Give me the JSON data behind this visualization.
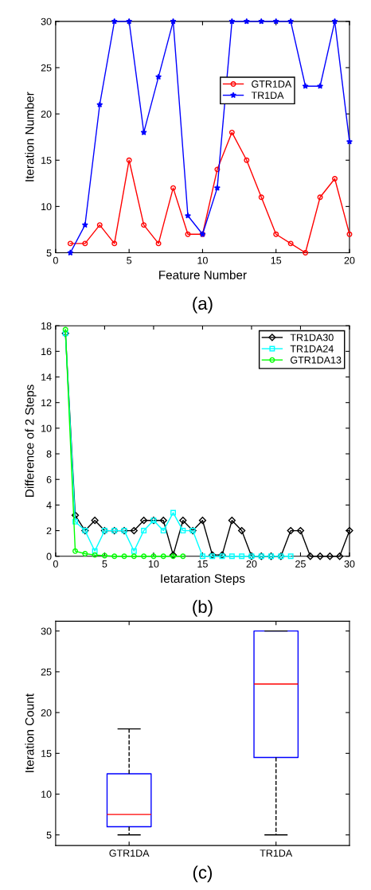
{
  "chart_data": [
    {
      "type": "line",
      "xlabel": "Feature Number",
      "ylabel": "Iteration Number",
      "annotations": [
        "(a)"
      ],
      "xlim": [
        0,
        20
      ],
      "xticks": [
        0,
        5,
        10,
        15,
        20
      ],
      "ylim": [
        5,
        30
      ],
      "yticks": [
        5,
        10,
        15,
        20,
        25,
        30
      ],
      "grid": false,
      "legend": "center right",
      "x": [
        1,
        2,
        3,
        4,
        5,
        6,
        7,
        8,
        9,
        10,
        11,
        12,
        13,
        14,
        15,
        16,
        17,
        18,
        19,
        20
      ],
      "series": [
        {
          "name": "GTR1DA",
          "color": "#ff0000",
          "marker": "circle",
          "values": [
            6,
            6,
            8,
            6,
            15,
            8,
            6,
            12,
            7,
            7,
            14,
            18,
            15,
            11,
            7,
            6,
            5,
            11,
            13,
            7
          ]
        },
        {
          "name": "TR1DA",
          "color": "#0000ff",
          "marker": "star",
          "values": [
            5,
            8,
            21,
            30,
            30,
            18,
            24,
            30,
            9,
            7,
            12,
            30,
            30,
            30,
            30,
            30,
            23,
            23,
            30,
            17
          ]
        }
      ]
    },
    {
      "type": "line",
      "xlabel": "Ietaration Steps",
      "ylabel": "Difference of 2 Steps",
      "annotations": [
        "(b)"
      ],
      "xlim": [
        0,
        30
      ],
      "xticks": [
        0,
        5,
        10,
        15,
        20,
        25,
        30
      ],
      "ylim": [
        0,
        18
      ],
      "yticks": [
        0,
        2,
        4,
        6,
        8,
        10,
        12,
        14,
        16,
        18
      ],
      "grid": false,
      "legend": "top right",
      "series": [
        {
          "name": "TR1DA30",
          "color": "#000000",
          "marker": "diamond",
          "x": [
            1,
            2,
            3,
            4,
            5,
            6,
            7,
            8,
            9,
            10,
            11,
            12,
            13,
            14,
            15,
            16,
            17,
            18,
            19,
            20,
            21,
            22,
            23,
            24,
            25,
            26,
            27,
            28,
            29,
            30
          ],
          "values": [
            17.4,
            3.2,
            2,
            2.8,
            2,
            2,
            2,
            2,
            2.8,
            2.8,
            2.8,
            0.1,
            2.8,
            2,
            2.8,
            0.1,
            0.1,
            2.8,
            2,
            0,
            0,
            0,
            0,
            2,
            2,
            0,
            0,
            0,
            0,
            2
          ]
        },
        {
          "name": "TR1DA24",
          "color": "#00ffff",
          "marker": "square",
          "x": [
            1,
            2,
            3,
            4,
            5,
            6,
            7,
            8,
            9,
            10,
            11,
            12,
            13,
            14,
            15,
            16,
            17,
            18,
            19,
            20,
            21,
            22,
            23,
            24
          ],
          "values": [
            17.4,
            2.7,
            2,
            0.4,
            2,
            2,
            2,
            0.4,
            2,
            2.8,
            2,
            3.4,
            2,
            2,
            0,
            0,
            0,
            0,
            0,
            0,
            0,
            0,
            0,
            0
          ]
        },
        {
          "name": "GTR1DA13",
          "color": "#00ff00",
          "marker": "circle",
          "x": [
            1,
            2,
            3,
            4,
            5,
            6,
            7,
            8,
            9,
            10,
            11,
            12,
            13
          ],
          "values": [
            17.7,
            0.4,
            0.2,
            0.1,
            0.05,
            0,
            0,
            0,
            0,
            0,
            0,
            0,
            0
          ]
        }
      ]
    },
    {
      "type": "box",
      "ylabel": "Iteration Count",
      "annotations": [
        "(c)"
      ],
      "categories": [
        "GTR1DA",
        "TR1DA"
      ],
      "ylim": [
        3.7,
        31.2
      ],
      "yticks": [
        5,
        10,
        15,
        20,
        25,
        30
      ],
      "grid": false,
      "legend": false,
      "series": [
        {
          "color": "#0000ff",
          "boxes": [
            {
              "low": 5,
              "q1": 6,
              "median": 7.5,
              "q3": 12.5,
              "high": 18
            },
            {
              "low": 5,
              "q1": 14.5,
              "median": 23.5,
              "q3": 30,
              "high": 30
            }
          ]
        }
      ]
    }
  ]
}
